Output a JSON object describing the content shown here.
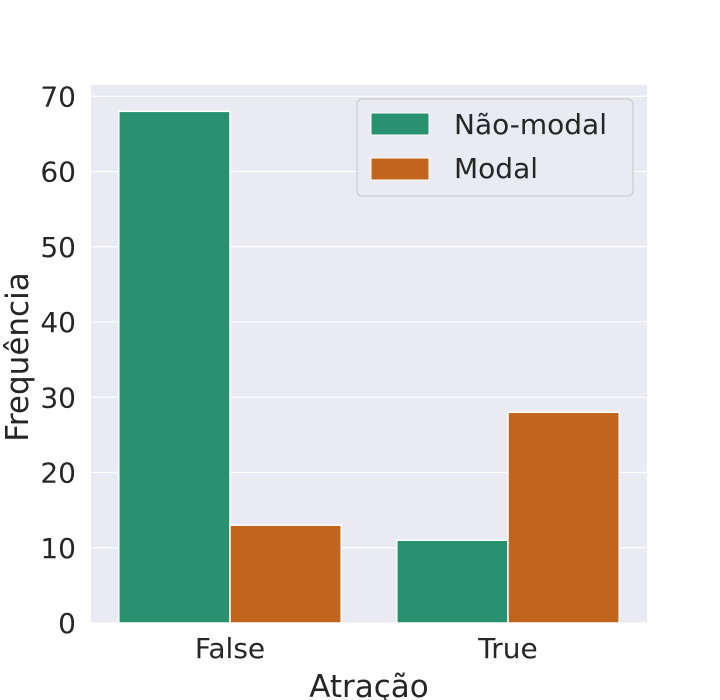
{
  "chart_data": {
    "type": "bar",
    "categories": [
      "False",
      "True"
    ],
    "series": [
      {
        "name": "Não-modal",
        "values": [
          68,
          11
        ],
        "color": "#2a9170"
      },
      {
        "name": "Modal",
        "values": [
          13,
          28
        ],
        "color": "#c0641e"
      }
    ],
    "xlabel": "Atração",
    "ylabel": "Frequência",
    "ylim": [
      0,
      71.5
    ],
    "yticks": [
      0,
      10,
      20,
      30,
      40,
      50,
      60,
      70
    ],
    "grid": true,
    "legend_position": "top-right",
    "background_color": "#eaeaf2",
    "grid_color": "#ffffff"
  }
}
